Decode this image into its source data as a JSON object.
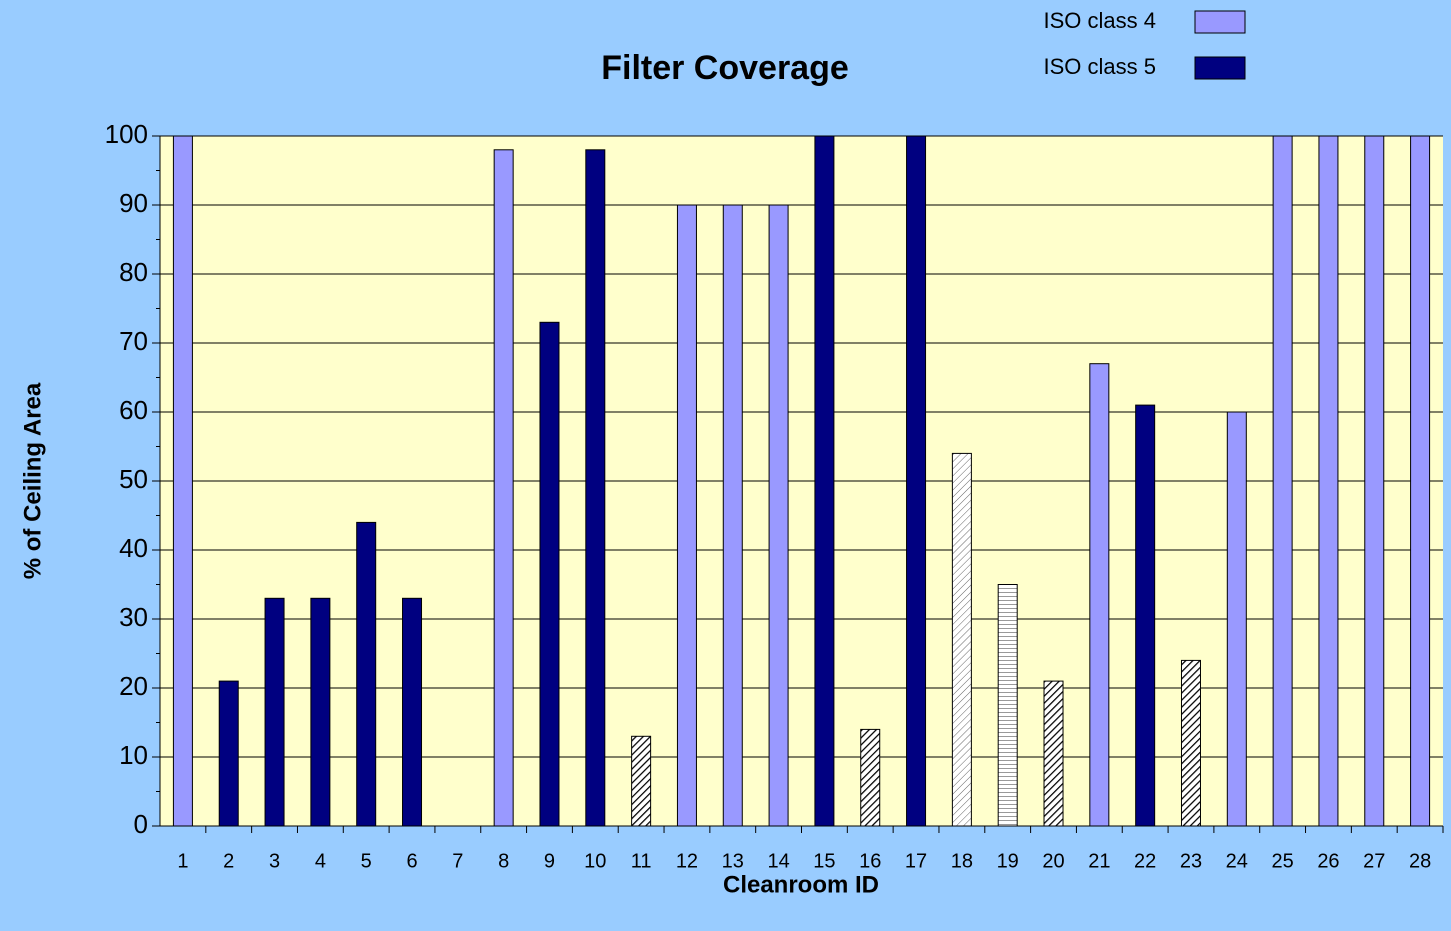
{
  "chart_data": {
    "type": "bar",
    "title": "Filter Coverage",
    "x_label": "Cleanroom ID",
    "y_label": "% of Ceiling Area",
    "categories": [
      "1",
      "2",
      "3",
      "4",
      "5",
      "6",
      "7",
      "8",
      "9",
      "10",
      "11",
      "12",
      "13",
      "14",
      "15",
      "16",
      "17",
      "18",
      "19",
      "20",
      "21",
      "22",
      "23",
      "24",
      "25",
      "26",
      "27",
      "28"
    ],
    "values": [
      100,
      21,
      33,
      33,
      44,
      33,
      null,
      98,
      73,
      98,
      13,
      90,
      90,
      90,
      100,
      14,
      100,
      54,
      35,
      21,
      67,
      61,
      24,
      60,
      100,
      100,
      100,
      100
    ],
    "bar_fills": [
      "#9999ff",
      "#000080",
      "#000080",
      "#000080",
      "#000080",
      "#000080",
      null,
      "#9999ff",
      "#000080",
      "#000080",
      "hatch-diagonal",
      "#9999ff",
      "#9999ff",
      "#9999ff",
      "#000080",
      "hatch-diagonal",
      "#000080",
      "hatch-light",
      "hatch-horizontal",
      "hatch-diagonal",
      "#9999ff",
      "#000080",
      "hatch-diagonal",
      "#9999ff",
      "#9999ff",
      "#9999ff",
      "#9999ff",
      "#9999ff"
    ],
    "legend": [
      {
        "name": "ISO class 4",
        "color": "#9999ff"
      },
      {
        "name": "ISO class 5",
        "color": "#000080"
      }
    ],
    "ylim": [
      0,
      100
    ],
    "yticks": [
      0,
      10,
      20,
      30,
      40,
      50,
      60,
      70,
      80,
      90,
      100
    ],
    "grid": true
  }
}
